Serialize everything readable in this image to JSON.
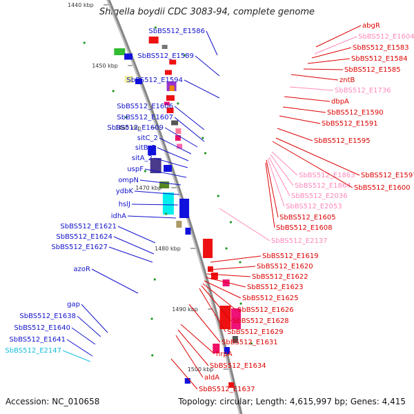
{
  "title": "Shigella boydii CDC 3083-94, complete genome",
  "accession": "Accession: NC_010658",
  "topology": "Topology: circular; Length: 4,615,997 bp; Genes: 4,415",
  "colors": {
    "forward_label": "#1010cc",
    "reverse_label": "#dd0000",
    "rna_label": "#ff88bb",
    "cyan_label": "#11bbdd",
    "backbone": "#888888"
  },
  "kbp_markers": [
    "1440 kbp",
    "1450 kbp",
    "1460 kbp",
    "1470 kbp",
    "1480 kbp",
    "1490 kbp",
    "1500 kbp"
  ],
  "left_labels": [
    "SbBS512_E1586",
    "SbBS512_E1589",
    "SbBS512_E1594",
    "SbBS512_E1606",
    "SbBS512_E1607",
    "SbBS512_E1609",
    "sitC_2",
    "sitB_2",
    "sitA_2",
    "uspF",
    "ompN",
    "ydbK",
    "hslJ",
    "idhA",
    "SbBS512_E1621",
    "SbBS512_E1624",
    "SbBS512_E1627",
    "azoR",
    "gap",
    "SbBS512_E1638",
    "SbBS512_E1640",
    "SbBS512_E1641",
    "SbBS512_E2147"
  ],
  "right_labels": [
    "abgR",
    "SbBS512_E1604",
    "SbBS512_E1583",
    "SbBS512_E1584",
    "SbBS512_E1585",
    "zntB",
    "SbBS512_E1736",
    "dbpA",
    "SbBS512_E1590",
    "SbBS512_E1591",
    "SbBS512_E1595",
    "SbBS512_E1597",
    "SbBS512_E1863",
    "SbBS512_E1864",
    "SbBS512_E1600",
    "SbBS512_E2036",
    "SbBS512_E2053",
    "SbBS512_E1605",
    "SbBS512_E1608",
    "SbBS512_E2137",
    "SbBS512_E1619",
    "SbBS512_E1620",
    "SbBS512_E1622",
    "SbBS512_E1623",
    "SbBS512_E1625",
    "SbBS512_E1626",
    "SbBS512_E1628",
    "SbBS512_E1629",
    "SbBS512_E1631",
    "hrpA",
    "SbBS512_E1634",
    "aldA",
    "SbBS512_E1637"
  ]
}
